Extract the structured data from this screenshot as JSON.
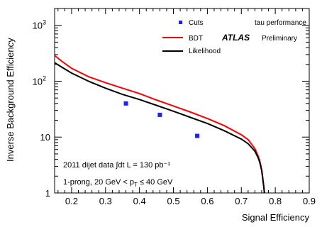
{
  "chart_data": {
    "type": "line",
    "xlabel": "Signal Efficiency",
    "ylabel": "Inverse Background Efficiency",
    "xlim": [
      0.15,
      0.9
    ],
    "ylim": [
      1,
      2000
    ],
    "yscale": "log",
    "grid": false,
    "legend_position": "top-right",
    "x_tick_labels": [
      "0.2",
      "0.3",
      "0.4",
      "0.5",
      "0.6",
      "0.7",
      "0.8",
      "0.9"
    ],
    "y_tick_labels": [
      {
        "base": "1",
        "exp": ""
      },
      {
        "base": "10",
        "exp": ""
      },
      {
        "base": "10",
        "exp": "2"
      },
      {
        "base": "10",
        "exp": "3"
      }
    ],
    "series": [
      {
        "name": "Cuts",
        "style": "markers",
        "color": "#1f1fff",
        "x": [
          0.36,
          0.46,
          0.57
        ],
        "y": [
          40,
          25,
          10.5
        ]
      },
      {
        "name": "BDT",
        "style": "line",
        "color": "#ff0000",
        "x": [
          0.15,
          0.17,
          0.2,
          0.25,
          0.3,
          0.35,
          0.4,
          0.45,
          0.5,
          0.55,
          0.6,
          0.65,
          0.7,
          0.72,
          0.74,
          0.75,
          0.755,
          0.76,
          0.763,
          0.766,
          0.768
        ],
        "y": [
          290,
          230,
          170,
          120,
          94,
          75,
          60,
          46,
          36,
          28,
          21.5,
          16,
          11,
          9,
          6.2,
          4.5,
          3.6,
          2.6,
          1.9,
          1.3,
          1.0
        ]
      },
      {
        "name": "Likelihood",
        "style": "line",
        "color": "#000000",
        "x": [
          0.15,
          0.17,
          0.2,
          0.25,
          0.3,
          0.35,
          0.4,
          0.45,
          0.5,
          0.55,
          0.6,
          0.65,
          0.7,
          0.72,
          0.74,
          0.75,
          0.755,
          0.76,
          0.763,
          0.766,
          0.768
        ],
        "y": [
          215,
          180,
          140,
          100,
          75,
          58,
          47,
          37,
          29,
          22.5,
          17.5,
          13,
          9.2,
          7.6,
          5.6,
          4.2,
          3.4,
          2.5,
          1.8,
          1.3,
          1.0
        ]
      }
    ],
    "annotations": {
      "tau_performance": "tau performance",
      "atlas": "ATLAS",
      "preliminary": "Preliminary",
      "line1": "2011 dijet data ∫dt L = 130 pb⁻¹",
      "line2": "1-prong, 20 GeV < p",
      "line2_sub": "T",
      "line2_rest": " ≤ 40 GeV"
    }
  }
}
